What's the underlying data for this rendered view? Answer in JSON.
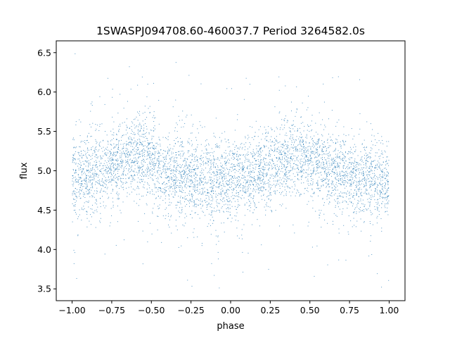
{
  "chart_data": {
    "type": "scatter",
    "title": "1SWASPJ094708.60-460037.7 Period 3264582.0s",
    "xlabel": "phase",
    "ylabel": "flux",
    "xlim": [
      -1.1,
      1.1
    ],
    "ylim": [
      3.35,
      6.65
    ],
    "xticks": [
      -1.0,
      -0.75,
      -0.5,
      -0.25,
      0.0,
      0.25,
      0.5,
      0.75,
      1.0
    ],
    "xtick_labels": [
      "−1.00",
      "−0.75",
      "−0.50",
      "−0.25",
      "0.00",
      "0.25",
      "0.50",
      "0.75",
      "1.00"
    ],
    "yticks": [
      3.5,
      4.0,
      4.5,
      5.0,
      5.5,
      6.0,
      6.5
    ],
    "ytick_labels": [
      "3.5",
      "4.0",
      "4.5",
      "5.0",
      "5.5",
      "6.0",
      "6.5"
    ],
    "grid": false,
    "legend": "none",
    "marker_color": "#1f77b4",
    "marker_size": "tiny",
    "phase_range": [
      -1.0,
      1.0
    ],
    "trend": {
      "phase": [
        -1.0,
        -0.9,
        -0.8,
        -0.7,
        -0.6,
        -0.5,
        -0.4,
        -0.3,
        -0.2,
        -0.1,
        0.0,
        0.1,
        0.2,
        0.3,
        0.4,
        0.5,
        0.6,
        0.7,
        0.8,
        0.9,
        1.0
      ],
      "flux": [
        4.92,
        4.95,
        5.0,
        5.1,
        5.2,
        5.08,
        4.98,
        4.93,
        4.9,
        4.87,
        4.88,
        4.93,
        5.02,
        5.12,
        5.2,
        5.1,
        5.0,
        4.95,
        4.9,
        4.88,
        4.9
      ]
    },
    "scatter_sigma": 0.25,
    "flux_extent": [
      3.5,
      6.5
    ]
  }
}
